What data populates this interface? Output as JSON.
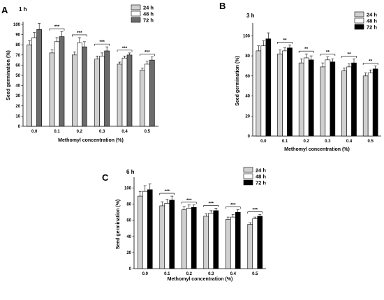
{
  "chart_data": [
    {
      "type": "bar",
      "panel": "A",
      "title": "1 h",
      "xlabel": "Methomyl concentration (%)",
      "ylabel": "Seed germination (%)",
      "ylim": [
        0,
        100
      ],
      "yticks": [
        0,
        10,
        20,
        30,
        40,
        50,
        60,
        70,
        80,
        90,
        100
      ],
      "categories": [
        "0.0",
        "0.1",
        "0.2",
        "0.3",
        "0.4",
        "0.5"
      ],
      "series": [
        {
          "name": "24 h",
          "color": "#d0d0d0",
          "values": [
            80,
            72,
            70,
            66,
            61,
            55
          ],
          "errors": [
            4,
            3,
            3,
            3,
            2,
            2
          ]
        },
        {
          "name": "48 h",
          "color": "#ffffff",
          "values": [
            87,
            83,
            82,
            69,
            67,
            61
          ],
          "errors": [
            5,
            4,
            5,
            3,
            2,
            3
          ]
        },
        {
          "name": "72 h",
          "color": "#6b6b6b",
          "values": [
            95,
            88,
            78,
            74,
            70,
            65
          ],
          "errors": [
            6,
            5,
            5,
            4,
            2,
            3
          ]
        }
      ],
      "annotations": [
        "",
        "***",
        "***",
        "***",
        "***",
        "***"
      ],
      "legend": "top-right"
    },
    {
      "type": "bar",
      "panel": "B",
      "title": "3 h",
      "xlabel": "Methomyl concentration (%)",
      "ylabel": "Seed germination (%)",
      "ylim": [
        0,
        110
      ],
      "yticks": [
        0,
        20,
        40,
        60,
        80,
        100
      ],
      "categories": [
        "0.0",
        "0.1",
        "0.2",
        "0.3",
        "0.4",
        "0.5"
      ],
      "series": [
        {
          "name": "24 h",
          "color": "#d0d0d0",
          "values": [
            85,
            82,
            73,
            69,
            65,
            60
          ],
          "errors": [
            5,
            4,
            4,
            4,
            3,
            3
          ]
        },
        {
          "name": "48 h",
          "color": "#ffffff",
          "values": [
            90,
            85,
            78,
            76,
            69,
            63
          ],
          "errors": [
            5,
            3,
            4,
            3,
            3,
            3
          ]
        },
        {
          "name": "72 h",
          "color": "#000000",
          "values": [
            97,
            88,
            76,
            74,
            73,
            67
          ],
          "errors": [
            6,
            3,
            4,
            3,
            4,
            3
          ]
        }
      ],
      "annotations": [
        "",
        "**",
        "**",
        "**",
        "**",
        "**"
      ],
      "legend": "top-right"
    },
    {
      "type": "bar",
      "panel": "C",
      "title": "6 h",
      "xlabel": "Methomyl concentration (%)",
      "ylabel": "Seed germination (%)",
      "ylim": [
        0,
        110
      ],
      "yticks": [
        0,
        20,
        40,
        60,
        80,
        100
      ],
      "categories": [
        "0.0",
        "0.1",
        "0.2",
        "0.3",
        "0.4",
        "0.5"
      ],
      "series": [
        {
          "name": "24 h",
          "color": "#d0d0d0",
          "values": [
            90,
            78,
            73,
            65,
            61,
            55
          ],
          "errors": [
            6,
            5,
            4,
            3,
            3,
            2
          ]
        },
        {
          "name": "48 h",
          "color": "#ffffff",
          "values": [
            96,
            81,
            75,
            69,
            64,
            62
          ],
          "errors": [
            7,
            5,
            4,
            3,
            3,
            2
          ]
        },
        {
          "name": "72 h",
          "color": "#000000",
          "values": [
            98,
            85,
            76,
            72,
            70,
            65
          ],
          "errors": [
            7,
            5,
            3,
            3,
            3,
            2
          ]
        }
      ],
      "annotations": [
        "",
        "***",
        "***",
        "***",
        "***",
        "***"
      ],
      "legend": "top-right"
    }
  ]
}
